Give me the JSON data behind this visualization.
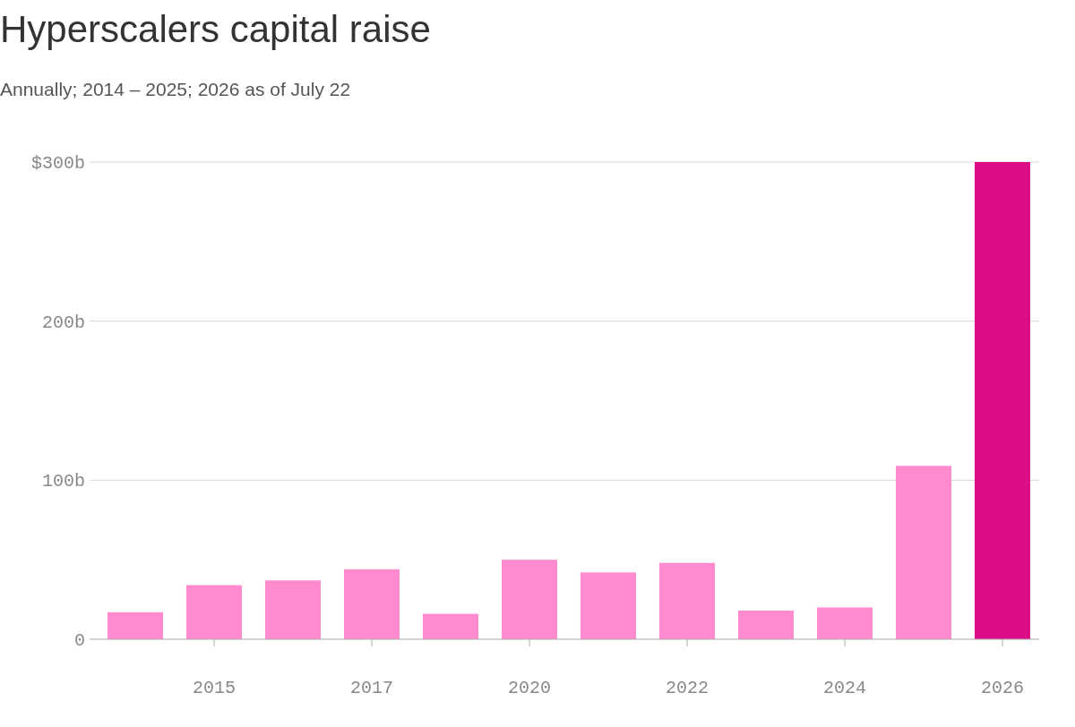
{
  "chart_data": {
    "type": "bar",
    "title": "Hyperscalers capital raise",
    "subtitle": "Annually; 2014 – 2025; 2026 as of July 22",
    "categories": [
      null,
      "2015",
      null,
      "2017",
      null,
      "2020",
      null,
      "2022",
      null,
      "2024",
      null,
      "2026"
    ],
    "values": [
      17,
      34,
      37,
      44,
      16,
      50,
      42,
      48,
      18,
      20,
      109,
      300
    ],
    "colors": [
      "#ff8ace",
      "#ff8ace",
      "#ff8ace",
      "#ff8ace",
      "#ff8ace",
      "#ff8ace",
      "#ff8ace",
      "#ff8ace",
      "#ff8ace",
      "#ff8ace",
      "#ff8ace",
      "#dc0d85"
    ],
    "ylim": [
      0,
      300
    ],
    "yticks": [
      {
        "value": 0,
        "label": "0"
      },
      {
        "value": 100,
        "label": "100b"
      },
      {
        "value": 200,
        "label": "200b"
      },
      {
        "value": 300,
        "label": "$300b"
      }
    ],
    "grid": "y"
  }
}
